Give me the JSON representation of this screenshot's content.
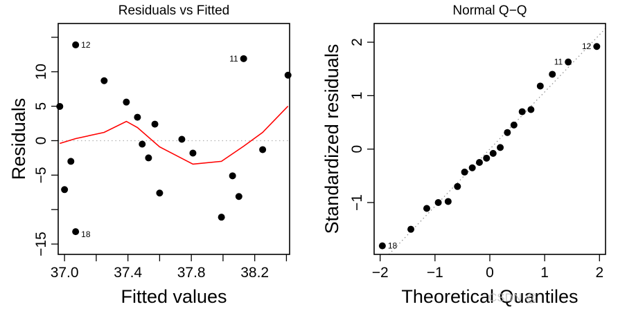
{
  "chart_data": [
    {
      "type": "scatter",
      "title": "Residuals vs Fitted",
      "xlabel": "Fitted values",
      "ylabel": "Residuals",
      "xlim": [
        36.96,
        38.42
      ],
      "ylim": [
        -16.5,
        17
      ],
      "xticks": [
        {
          "value": 37.0,
          "label": "37.0"
        },
        {
          "value": 37.2,
          "label": ""
        },
        {
          "value": 37.4,
          "label": "37.4"
        },
        {
          "value": 37.6,
          "label": ""
        },
        {
          "value": 37.8,
          "label": "37.8"
        },
        {
          "value": 38.0,
          "label": ""
        },
        {
          "value": 38.2,
          "label": "38.2"
        },
        {
          "value": 38.4,
          "label": ""
        }
      ],
      "yticks": [
        {
          "value": 15,
          "label": ""
        },
        {
          "value": 10,
          "label": "10"
        },
        {
          "value": 5,
          "label": "5"
        },
        {
          "value": 0,
          "label": "0"
        },
        {
          "value": -5,
          "label": "−5"
        },
        {
          "value": -10,
          "label": ""
        },
        {
          "value": -15,
          "label": "−15"
        }
      ],
      "reference_line": {
        "type": "horizontal",
        "y": 0,
        "style": "dotted",
        "color": "#b0b0b0"
      },
      "points": [
        {
          "x": 36.97,
          "y": 4.97
        },
        {
          "x": 37.07,
          "y": 13.9,
          "label": "12"
        },
        {
          "x": 37.25,
          "y": 8.7
        },
        {
          "x": 37.39,
          "y": 5.6
        },
        {
          "x": 37.46,
          "y": 3.4
        },
        {
          "x": 37.57,
          "y": 2.4
        },
        {
          "x": 37.49,
          "y": -0.5
        },
        {
          "x": 37.53,
          "y": -2.5
        },
        {
          "x": 37.6,
          "y": -7.6
        },
        {
          "x": 37.74,
          "y": 0.2
        },
        {
          "x": 37.81,
          "y": -1.8
        },
        {
          "x": 38.13,
          "y": 11.9,
          "label": "11"
        },
        {
          "x": 38.41,
          "y": 9.5
        },
        {
          "x": 38.25,
          "y": -1.3
        },
        {
          "x": 38.06,
          "y": -5.1
        },
        {
          "x": 38.1,
          "y": -8.1
        },
        {
          "x": 37.99,
          "y": -11.1
        },
        {
          "x": 37.04,
          "y": -3.0
        },
        {
          "x": 37.0,
          "y": -7.1
        },
        {
          "x": 37.07,
          "y": -13.2,
          "label": "18"
        }
      ],
      "smooth_line": {
        "color": "#ff0000",
        "points": [
          {
            "x": 36.97,
            "y": -0.4
          },
          {
            "x": 37.07,
            "y": 0.3
          },
          {
            "x": 37.25,
            "y": 1.2
          },
          {
            "x": 37.39,
            "y": 2.8
          },
          {
            "x": 37.46,
            "y": 1.9
          },
          {
            "x": 37.6,
            "y": -0.9
          },
          {
            "x": 37.81,
            "y": -3.4
          },
          {
            "x": 37.99,
            "y": -3.0
          },
          {
            "x": 38.13,
            "y": -0.8
          },
          {
            "x": 38.25,
            "y": 1.2
          },
          {
            "x": 38.41,
            "y": 5.0
          }
        ]
      }
    },
    {
      "type": "scatter",
      "title": "Normal Q−Q",
      "xlabel": "Theoretical Quantiles",
      "ylabel": "Standardized residuals",
      "xlim": [
        -2.11,
        2.11
      ],
      "ylim": [
        -1.97,
        2.35
      ],
      "xticks": [
        {
          "value": -2,
          "label": "−2"
        },
        {
          "value": -1,
          "label": "−1"
        },
        {
          "value": 0,
          "label": "0"
        },
        {
          "value": 1,
          "label": "1"
        },
        {
          "value": 2,
          "label": "2"
        }
      ],
      "yticks": [
        {
          "value": 2,
          "label": "2"
        },
        {
          "value": 1,
          "label": "1"
        },
        {
          "value": 0,
          "label": "0"
        },
        {
          "value": -1,
          "label": "−1"
        }
      ],
      "reference_line": {
        "type": "diagonal",
        "slope": 1.07,
        "intercept": 0.0,
        "style": "dotted",
        "color": "#909090"
      },
      "points": [
        {
          "x": -1.96,
          "y": -1.81,
          "label": "18"
        },
        {
          "x": -1.44,
          "y": -1.5
        },
        {
          "x": -1.15,
          "y": -1.11
        },
        {
          "x": -0.94,
          "y": -1.0
        },
        {
          "x": -0.76,
          "y": -0.98
        },
        {
          "x": -0.59,
          "y": -0.7
        },
        {
          "x": -0.46,
          "y": -0.43
        },
        {
          "x": -0.32,
          "y": -0.35
        },
        {
          "x": -0.19,
          "y": -0.25
        },
        {
          "x": -0.06,
          "y": -0.17
        },
        {
          "x": 0.06,
          "y": -0.08
        },
        {
          "x": 0.19,
          "y": 0.03
        },
        {
          "x": 0.32,
          "y": 0.31
        },
        {
          "x": 0.44,
          "y": 0.45
        },
        {
          "x": 0.59,
          "y": 0.7
        },
        {
          "x": 0.75,
          "y": 0.74
        },
        {
          "x": 0.92,
          "y": 1.18
        },
        {
          "x": 1.14,
          "y": 1.4
        },
        {
          "x": 1.43,
          "y": 1.63,
          "label": "11"
        },
        {
          "x": 1.95,
          "y": 1.92,
          "label": "12"
        }
      ]
    }
  ],
  "watermark": "CSDN @"
}
